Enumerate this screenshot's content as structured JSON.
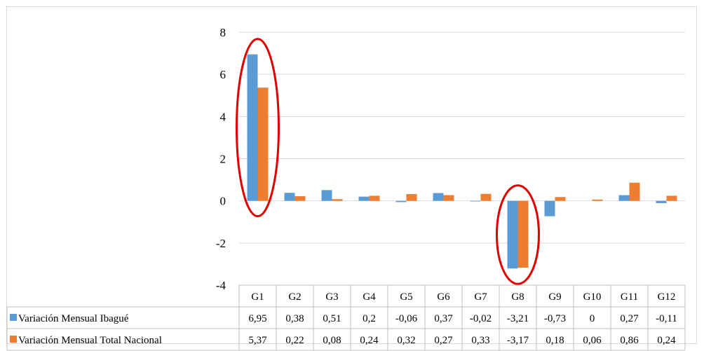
{
  "chart_data": {
    "type": "bar",
    "categories": [
      "G1",
      "G2",
      "G3",
      "G4",
      "G5",
      "G6",
      "G7",
      "G8",
      "G9",
      "G10",
      "G11",
      "G12"
    ],
    "series": [
      {
        "name": "Variación Mensual Ibagué",
        "color": "#5b9bd5",
        "values": [
          6.95,
          0.38,
          0.51,
          0.2,
          -0.06,
          0.37,
          -0.02,
          -3.21,
          -0.73,
          0,
          0.27,
          -0.11
        ],
        "labels": [
          "6,95",
          "0,38",
          "0,51",
          "0,2",
          "-0,06",
          "0,37",
          "-0,02",
          "-3,21",
          "-0,73",
          "0",
          "0,27",
          "-0,11"
        ]
      },
      {
        "name": "Variación Mensual Total Nacional",
        "color": "#ed7d31",
        "values": [
          5.37,
          0.22,
          0.08,
          0.24,
          0.32,
          0.27,
          0.33,
          -3.17,
          0.18,
          0.06,
          0.86,
          0.24
        ],
        "labels": [
          "5,37",
          "0,22",
          "0,08",
          "0,24",
          "0,32",
          "0,27",
          "0,33",
          "-3,17",
          "0,18",
          "0,06",
          "0,86",
          "0,24"
        ]
      }
    ],
    "ylim": [
      -4,
      8
    ],
    "yticks": [
      8,
      6,
      4,
      2,
      0,
      -2,
      -4
    ],
    "grid": true,
    "legend": "data-table",
    "highlighted_categories": [
      "G1",
      "G8"
    ],
    "highlight_color": "#e00000"
  }
}
